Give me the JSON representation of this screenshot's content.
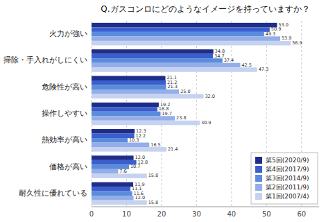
{
  "chart_data": {
    "type": "bar",
    "orientation": "horizontal",
    "title": "Q.ガスコンロにどのようなイメージを持っていますか？",
    "categories": [
      "火力が強い",
      "掃除・手入れがしにくい",
      "危険性が高い",
      "操作しやすい",
      "熱効率が高い",
      "価格が高い",
      "耐久性に優れている"
    ],
    "series": [
      {
        "name": "第5回(2020/9)",
        "color": "#1F2D8A",
        "values": [
          53.0,
          34.8,
          21.1,
          19.2,
          12.3,
          12.0,
          11.9
        ],
        "value_labels": [
          "53.0",
          "34.8",
          "21.1",
          "19.2",
          "12.3",
          "12.0",
          "11.9"
        ]
      },
      {
        "name": "第4回(2017/9)",
        "color": "#3A5FCD",
        "values": [
          50.9,
          34.7,
          21.2,
          18.8,
          12.2,
          12.8,
          11.1
        ],
        "value_labels": [
          "50.9",
          "34.7",
          "21.2",
          "18.8",
          "12.2",
          "12.8",
          "11.1"
        ]
      },
      {
        "name": "第3回(2014/9)",
        "color": "#5B8CDB",
        "values": [
          49.3,
          37.4,
          21.3,
          19.7,
          10.3,
          10.7,
          11.6
        ],
        "value_labels": [
          "49.3",
          "37.4",
          "21.3",
          "19.7",
          "10.3",
          "10.7",
          "11.6"
        ]
      },
      {
        "name": "第2回(2011/9)",
        "color": "#93AEE8",
        "values": [
          53.9,
          42.5,
          25.0,
          23.8,
          16.5,
          7.6,
          12.0
        ],
        "value_labels": [
          "53.9",
          "42.5",
          "25.0",
          "23.8",
          "16.5",
          "7.6",
          "12.0"
        ]
      },
      {
        "name": "第1回(2007/4)",
        "color": "#C5D3F0",
        "values": [
          56.9,
          47.3,
          32.0,
          30.9,
          21.4,
          15.8,
          15.8
        ],
        "value_labels": [
          "56.9",
          "47.3",
          "32.0",
          "30.9",
          "21.4",
          "15.8",
          "15.8"
        ]
      }
    ],
    "xlim": [
      0,
      65
    ],
    "xticks": [
      0,
      10,
      20,
      30,
      40,
      50,
      60
    ],
    "grid": true,
    "legend": "lower right",
    "data_labels": true
  }
}
